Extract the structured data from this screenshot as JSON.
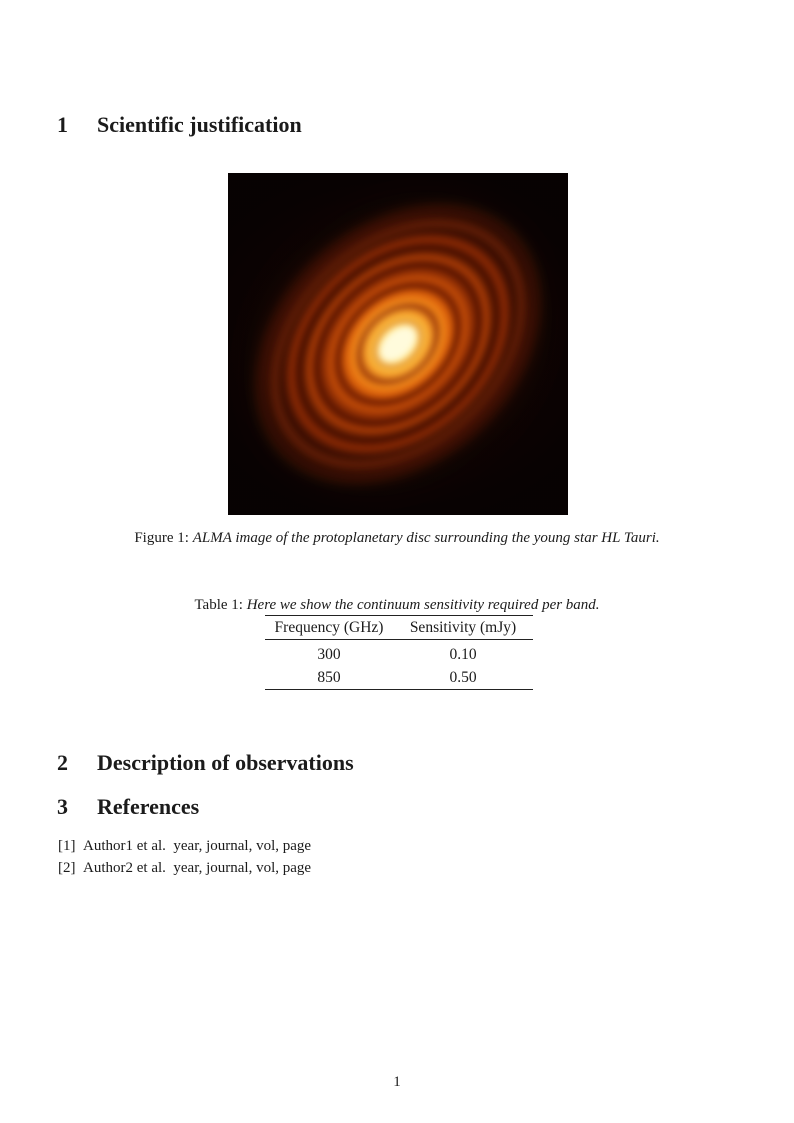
{
  "page": {
    "number": "1"
  },
  "sections": [
    {
      "number": "1",
      "title": "Scientific justification"
    },
    {
      "number": "2",
      "title": "Description of observations"
    },
    {
      "number": "3",
      "title": "References"
    }
  ],
  "figure": {
    "image_name": "alma-hl-tauri-protoplanetary-disc",
    "caption_label": "Figure 1:",
    "caption_text": "ALMA image of the protoplanetary disc surrounding the young star HL Tauri."
  },
  "table": {
    "caption_label": "Table 1:",
    "caption_text": "Here we show the continuum sensitivity required per band.",
    "headers": [
      "Frequency (GHz)",
      "Sensitivity (mJy)"
    ],
    "rows": [
      [
        "300",
        "0.10"
      ],
      [
        "850",
        "0.50"
      ]
    ]
  },
  "references": [
    {
      "label": "[1]",
      "text": "Author1 et al.  year, journal, vol, page"
    },
    {
      "label": "[2]",
      "text": "Author2 et al.  year, journal, vol, page"
    }
  ],
  "disc_colors": {
    "disc-bg": "#070202",
    "core": "#fffbdc",
    "bright": "#ffd23e",
    "mid": "#ee7d12",
    "ring": "#c24c08",
    "haze": "#3a0c02"
  }
}
